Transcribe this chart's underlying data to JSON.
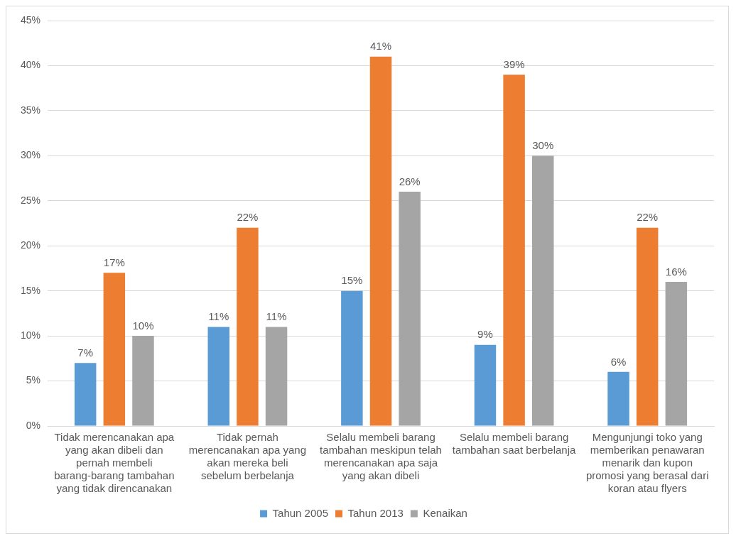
{
  "chart_data": {
    "type": "bar",
    "categories": [
      "Tidak merencanakan apa yang akan dibeli dan pernah membeli barang-barang tambahan yang tidak direncanakan",
      "Tidak pernah merencanakan apa yang akan mereka beli sebelum berbelanja",
      "Selalu membeli barang tambahan meskipun telah merencanakan apa saja yang akan dibeli",
      "Selalu membeli barang tambahan saat berbelanja",
      "Mengunjungi toko yang memberikan penawaran menarik dan kupon promosi yang berasal dari koran atau flyers"
    ],
    "series": [
      {
        "name": "Tahun 2005",
        "color": "#5b9bd5",
        "values": [
          7,
          11,
          15,
          9,
          6
        ],
        "value_labels": [
          "7%",
          "11%",
          "15%",
          "9%",
          "6%"
        ]
      },
      {
        "name": "Tahun 2013",
        "color": "#ed7d31",
        "values": [
          17,
          22,
          41,
          39,
          22
        ],
        "value_labels": [
          "17%",
          "22%",
          "41%",
          "39%",
          "22%"
        ]
      },
      {
        "name": "Kenaikan",
        "color": "#a5a5a5",
        "values": [
          10,
          11,
          26,
          30,
          16
        ],
        "value_labels": [
          "10%",
          "11%",
          "26%",
          "30%",
          "16%"
        ]
      }
    ],
    "ylim": [
      0,
      45
    ],
    "yticks": [
      {
        "value": 0,
        "label": "0%"
      },
      {
        "value": 5,
        "label": "5%"
      },
      {
        "value": 10,
        "label": "10%"
      },
      {
        "value": 15,
        "label": "15%"
      },
      {
        "value": 20,
        "label": "20%"
      },
      {
        "value": 25,
        "label": "25%"
      },
      {
        "value": 30,
        "label": "30%"
      },
      {
        "value": 35,
        "label": "35%"
      },
      {
        "value": 40,
        "label": "40%"
      },
      {
        "value": 45,
        "label": "45%"
      }
    ],
    "grid": "y",
    "legend": "bottom"
  }
}
